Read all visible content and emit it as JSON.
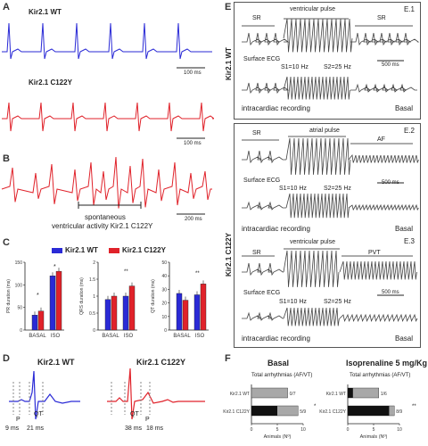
{
  "panels": {
    "A": {
      "letter": "A",
      "wt_label": "Kir2.1 WT",
      "mut_label": "Kir2.1 C122Y",
      "scale1": "100 ms",
      "scale2": "100 ms"
    },
    "B": {
      "letter": "B",
      "scale": "200 ms",
      "caption_l1": "spontaneous",
      "caption_l2": "ventricular activity Kir2.1 C122Y"
    },
    "C": {
      "letter": "C",
      "legend_wt": "Kir2.1 WT",
      "legend_mut": "Kir2.1 C122Y",
      "ylabel_pr": "PR duration (ms)",
      "ylabel_qrs": "QRS duration (ms)",
      "ylabel_qt": "QT duration (ms)",
      "x_basal": "BASAL",
      "x_iso": "ISO",
      "star": "*",
      "dstar": "**"
    },
    "D": {
      "letter": "D",
      "wt_title": "Kir2.1 WT",
      "mut_title": "Kir2.1 C122Y",
      "wt_qt": "QT",
      "wt_p": "P",
      "wt_ms1": "9 ms",
      "wt_ms2": "21 ms",
      "mut_qt": "QT",
      "mut_p": "P",
      "mut_ms1": "38 ms",
      "mut_ms2": "18 ms"
    },
    "E": {
      "letter": "E",
      "wt_side": "Kir2.1 WT",
      "mut_side": "Kir2.1 C122Y",
      "e1": {
        "tag": "E.1",
        "sr_left": "SR",
        "pulse": "ventricular pulse",
        "sr_right": "SR",
        "ecg": "Surface ECG",
        "s1": "S1=10 Hz",
        "s2": "S2=25 Hz",
        "scale": "500 ms",
        "intra": "intracardiac recording",
        "basal": "Basal"
      },
      "e2": {
        "tag": "E.2",
        "sr_left": "SR",
        "pulse": "atrial pulse",
        "af": "AF",
        "ecg": "Surface ECG",
        "s1": "S1=10 Hz",
        "s2": "S2=25 Hz",
        "scale": "500 ms",
        "intra": "intracardiac recording",
        "basal": "Basal"
      },
      "e3": {
        "tag": "E.3",
        "sr_left": "SR",
        "pulse": "ventricular pulse",
        "pvt": "PVT",
        "ecg": "Surface ECG",
        "s1": "S1=10 Hz",
        "s2": "S2=25 Hz",
        "scale": "500 ms",
        "intra": "intracardiac recording",
        "basal": "Basal"
      }
    },
    "F": {
      "letter": "F",
      "basal_title": "Basal",
      "iso_title": "Isoprenaline 5 mg/Kg",
      "subtitle": "Total arrhythmias (AF/VT)",
      "row_wt": "Kir2.1 WT",
      "row_mut": "Kir2.1 C122Y",
      "frac_basal_wt": "0/7",
      "frac_basal_mut": "5/9",
      "frac_iso_wt": "1/6",
      "frac_iso_mut": "8/9",
      "xlabel": "Animals (Nº)",
      "star": "*",
      "dstar": "**"
    }
  },
  "colors": {
    "wt": "#2a2ad6",
    "mut": "#e0222a"
  },
  "chart_data": [
    {
      "type": "bar",
      "title": "",
      "ylabel": "PR duration (ms)",
      "categories": [
        "BASAL",
        "ISO"
      ],
      "series": [
        {
          "name": "Kir2.1 WT",
          "values": [
            33,
            120
          ]
        },
        {
          "name": "Kir2.1 C122Y",
          "values": [
            42,
            130
          ]
        }
      ],
      "ylim": [
        0,
        150
      ]
    },
    {
      "type": "bar",
      "title": "",
      "ylabel": "QRS duration (ms)",
      "categories": [
        "BASAL",
        "ISO"
      ],
      "series": [
        {
          "name": "Kir2.1 WT",
          "values": [
            0.9,
            1.0
          ]
        },
        {
          "name": "Kir2.1 C122Y",
          "values": [
            1.0,
            1.3
          ]
        }
      ],
      "ylim": [
        0,
        2.0
      ]
    },
    {
      "type": "bar",
      "title": "",
      "ylabel": "QT duration (ms)",
      "categories": [
        "BASAL",
        "ISO"
      ],
      "series": [
        {
          "name": "Kir2.1 WT",
          "values": [
            27,
            26
          ]
        },
        {
          "name": "Kir2.1 C122Y",
          "values": [
            22,
            34
          ]
        }
      ],
      "ylim": [
        0,
        50
      ]
    },
    {
      "type": "bar",
      "title": "Basal",
      "xlabel": "Animals (Nº)",
      "categories": [
        "Kir2.1 WT",
        "Kir2.1 C122Y"
      ],
      "series": [
        {
          "name": "arrhythmic",
          "values": [
            0,
            5
          ]
        },
        {
          "name": "total",
          "values": [
            7,
            9
          ]
        }
      ],
      "xlim": [
        0,
        10
      ]
    },
    {
      "type": "bar",
      "title": "Isoprenaline 5 mg/Kg",
      "xlabel": "Animals (Nº)",
      "categories": [
        "Kir2.1 WT",
        "Kir2.1 C122Y"
      ],
      "series": [
        {
          "name": "arrhythmic",
          "values": [
            1,
            8
          ]
        },
        {
          "name": "total",
          "values": [
            6,
            9
          ]
        }
      ],
      "xlim": [
        0,
        10
      ]
    }
  ]
}
